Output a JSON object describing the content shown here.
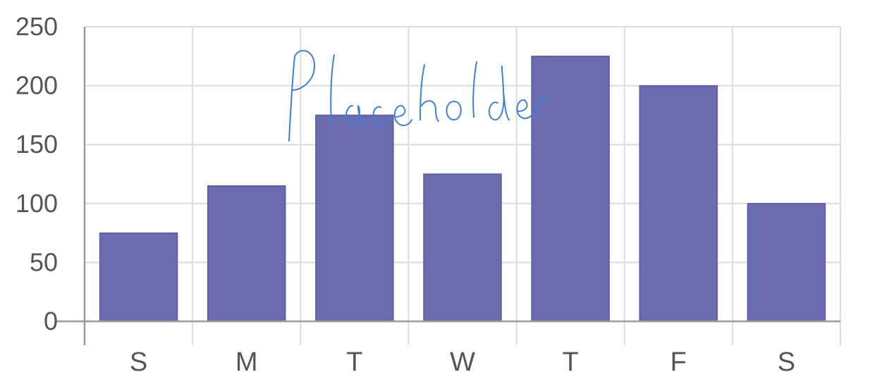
{
  "chart_data": {
    "type": "bar",
    "categories": [
      "S",
      "M",
      "T",
      "W",
      "T",
      "F",
      "S"
    ],
    "values": [
      75,
      115,
      175,
      125,
      225,
      200,
      100
    ],
    "title": "",
    "xlabel": "",
    "ylabel": "",
    "ylim": [
      0,
      250
    ],
    "yticks": [
      0,
      50,
      100,
      150,
      200,
      250
    ],
    "grid": true,
    "legend": "none",
    "bar_color": "#6a6bb1"
  },
  "handwritten_note": "Placeholder"
}
